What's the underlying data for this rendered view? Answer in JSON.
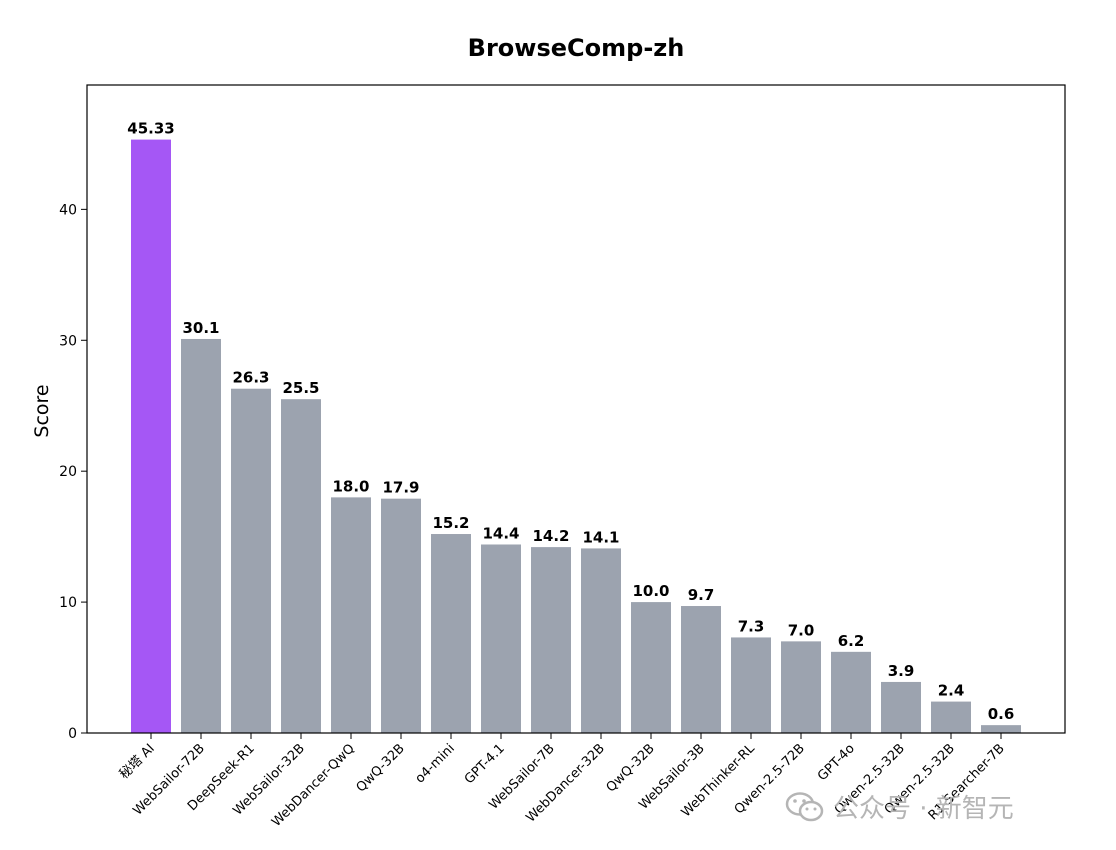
{
  "chart_data": {
    "type": "bar",
    "title": "BrowseComp-zh",
    "ylabel": "Score",
    "xlabel": "",
    "ylim": [
      0,
      49.5
    ],
    "yticks": [
      0,
      10,
      20,
      30,
      40
    ],
    "grid": false,
    "categories": [
      "秘塔 AI",
      "WebSailor-72B",
      "DeepSeek-R1",
      "WebSailor-32B",
      "WebDancer-QwQ",
      "QwQ-32B",
      "o4-mini",
      "GPT-4.1",
      "WebSailor-7B",
      "WebDancer-32B",
      "QwQ-32B",
      "WebSailor-3B",
      "WebThinker-RL",
      "Qwen-2.5-72B",
      "GPT-4o",
      "Qwen-2.5-32B",
      "Qwen-2.5-32B",
      "R1-Searcher-7B"
    ],
    "values": [
      45.33,
      30.1,
      26.3,
      25.5,
      18.0,
      17.9,
      15.2,
      14.4,
      14.2,
      14.1,
      10.0,
      9.7,
      7.3,
      7.0,
      6.2,
      3.9,
      2.4,
      0.6
    ],
    "value_labels": [
      "45.33",
      "30.1",
      "26.3",
      "25.5",
      "18.0",
      "17.9",
      "15.2",
      "14.4",
      "14.2",
      "14.1",
      "10.0",
      "9.7",
      "7.3",
      "7.0",
      "6.2",
      "3.9",
      "2.4",
      "0.6"
    ],
    "colors": {
      "highlight": "#a557f5",
      "default": "#9ca3af"
    }
  },
  "watermark": {
    "icon": "wechat-icon",
    "text": "公众号 · 新智元"
  }
}
